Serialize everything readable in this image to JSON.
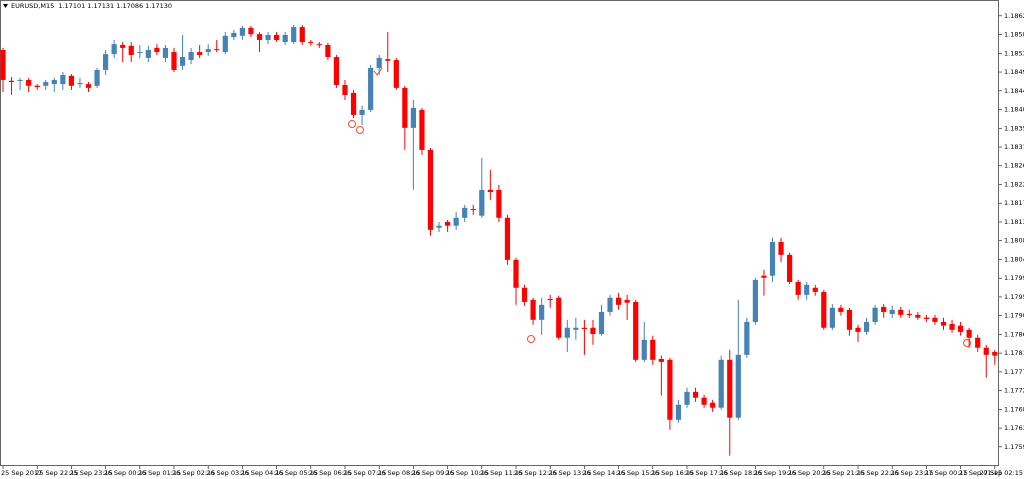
{
  "chart_data": {
    "type": "candlestick",
    "title": "EURUSD,M15  1.17101 1.17131 1.17086 1.17130",
    "up_color": "#4682b4",
    "down_color": "#ff0000",
    "categories": [
      "25 Sep 2017",
      null,
      null,
      null,
      "25 Sep 22:15",
      null,
      null,
      null,
      "25 Sep 23:15",
      null,
      null,
      null,
      "26 Sep 00:15",
      null,
      null,
      null,
      "26 Sep 01:15",
      null,
      null,
      null,
      "26 Sep 02:15",
      null,
      null,
      null,
      "26 Sep 03:15",
      null,
      null,
      null,
      "26 Sep 04:15",
      null,
      null,
      null,
      "26 Sep 05:15",
      null,
      null,
      null,
      "26 Sep 06:15",
      null,
      null,
      null,
      "26 Sep 07:15",
      null,
      null,
      null,
      "26 Sep 08:15",
      null,
      null,
      null,
      "26 Sep 09:15",
      null,
      null,
      null,
      "26 Sep 10:15",
      null,
      null,
      null,
      "26 Sep 11:15",
      null,
      null,
      null,
      "26 Sep 12:15",
      null,
      null,
      null,
      "26 Sep 13:15",
      null,
      null,
      null,
      "26 Sep 14:15",
      null,
      null,
      null,
      "26 Sep 15:15",
      null,
      null,
      null,
      "26 Sep 16:15",
      null,
      null,
      null,
      "26 Sep 17:15",
      null,
      null,
      null,
      "26 Sep 18:15",
      null,
      null,
      null,
      "26 Sep 19:15",
      null,
      null,
      null,
      "26 Sep 20:15",
      null,
      null,
      null,
      "26 Sep 21:15",
      null,
      null,
      null,
      "26 Sep 22:15",
      null,
      null,
      null,
      "26 Sep 23:15",
      null,
      null,
      null,
      "27 Sep 00:15",
      null,
      null,
      null,
      "27 Sep 01:15",
      null,
      null,
      null,
      "27 Sep 02:15"
    ],
    "open": [
      1.18543,
      1.18469,
      1.18469,
      1.18471,
      1.18457,
      1.18457,
      1.18461,
      1.18461,
      1.18481,
      1.18461,
      1.18461,
      1.18457,
      1.18495,
      1.18533,
      1.18555,
      1.18553,
      1.18536,
      1.18524,
      1.18548,
      1.18524,
      1.18538,
      1.18505,
      1.18519,
      1.18538,
      1.18538,
      1.18545,
      1.18538,
      1.18574,
      1.18577,
      1.18596,
      1.18581,
      1.18567,
      1.18579,
      1.18562,
      1.18562,
      1.18598,
      1.18562,
      1.18557,
      1.18555,
      1.18526,
      1.18459,
      1.1844,
      1.18387,
      1.18399,
      1.185,
      1.18521,
      1.18519,
      1.18452,
      1.18356,
      1.18399,
      1.18303,
      1.18116,
      1.1813,
      1.18121,
      1.1814,
      1.18161,
      1.18145,
      1.18207,
      1.18207,
      1.1814,
      1.18039,
      1.17972,
      1.17943,
      1.17895,
      1.17945,
      1.17948,
      1.17852,
      1.17871,
      1.17876,
      1.17876,
      1.17861,
      1.17914,
      1.17948,
      1.17943,
      1.17938,
      1.17799,
      1.17847,
      1.17801,
      1.17799,
      1.17655,
      1.17691,
      1.17722,
      1.17708,
      1.17696,
      1.17684,
      1.17799,
      1.1766,
      1.17811,
      1.1789,
      1.18001,
      1.18001,
      1.18082,
      1.18051,
      1.17986,
      1.17955,
      1.17972,
      1.17962,
      1.17876,
      1.17924,
      1.17919,
      1.17876,
      1.17866,
      1.1789,
      1.17926,
      1.17909,
      1.17919,
      1.17909,
      1.17907,
      1.179,
      1.179,
      1.1789,
      1.17885,
      1.17881,
      1.17871,
      1.17852,
      1.17828,
      1.17818
    ],
    "high": [
      1.18548,
      1.18478,
      1.18476,
      1.18476,
      1.18461,
      1.18471,
      1.18476,
      1.1849,
      1.18485,
      1.18476,
      1.18466,
      1.185,
      1.18543,
      1.18567,
      1.18562,
      1.18562,
      1.18555,
      1.18553,
      1.18557,
      1.18555,
      1.18548,
      1.18579,
      1.18548,
      1.18555,
      1.18557,
      1.18567,
      1.18586,
      1.18591,
      1.18601,
      1.18601,
      1.18586,
      1.18586,
      1.18586,
      1.18586,
      1.18603,
      1.18603,
      1.18567,
      1.18562,
      1.1856,
      1.18531,
      1.18471,
      1.18447,
      1.18409,
      1.18507,
      1.18531,
      1.18586,
      1.18524,
      1.18457,
      1.18423,
      1.18404,
      1.18308,
      1.1813,
      1.18135,
      1.18154,
      1.18171,
      1.18171,
      1.18284,
      1.18255,
      1.18219,
      1.18147,
      1.18044,
      1.17979,
      1.17948,
      1.17948,
      1.17955,
      1.17953,
      1.17895,
      1.179,
      1.17895,
      1.17895,
      1.17931,
      1.17955,
      1.1796,
      1.17955,
      1.17943,
      1.1789,
      1.17857,
      1.17809,
      1.17804,
      1.17703,
      1.17732,
      1.17732,
      1.17715,
      1.17703,
      1.17809,
      1.17823,
      1.17943,
      1.179,
      1.17996,
      1.18015,
      1.18092,
      1.18092,
      1.18056,
      1.17991,
      1.17986,
      1.17979,
      1.17967,
      1.17933,
      1.17931,
      1.17924,
      1.17883,
      1.179,
      1.17931,
      1.17933,
      1.17929,
      1.17926,
      1.17919,
      1.17914,
      1.17907,
      1.17907,
      1.179,
      1.17895,
      1.1789,
      1.17876,
      1.17859,
      1.17835,
      1.17823
    ],
    "low": [
      1.18442,
      1.18435,
      1.18447,
      1.18442,
      1.18447,
      1.18447,
      1.18442,
      1.18447,
      1.18447,
      1.18452,
      1.18442,
      1.18452,
      1.18483,
      1.18524,
      1.18514,
      1.18514,
      1.18524,
      1.18514,
      1.18531,
      1.18514,
      1.1849,
      1.18495,
      1.18509,
      1.18524,
      1.18529,
      1.18538,
      1.18533,
      1.18567,
      1.18567,
      1.18574,
      1.18538,
      1.18557,
      1.18562,
      1.18555,
      1.18557,
      1.18555,
      1.18553,
      1.18548,
      1.18519,
      1.18452,
      1.18423,
      1.1838,
      1.18363,
      1.18394,
      1.18483,
      1.1849,
      1.18447,
      1.18303,
      1.18207,
      1.18291,
      1.18097,
      1.18106,
      1.18106,
      1.18111,
      1.1813,
      1.18147,
      1.1814,
      1.18183,
      1.1813,
      1.18027,
      1.17931,
      1.17929,
      1.17883,
      1.17859,
      1.17924,
      1.17847,
      1.17818,
      1.17847,
      1.17811,
      1.17835,
      1.17857,
      1.17905,
      1.17919,
      1.17895,
      1.17794,
      1.17794,
      1.17787,
      1.17713,
      1.17631,
      1.17648,
      1.17684,
      1.17698,
      1.17684,
      1.17674,
      1.17679,
      1.17569,
      1.17655,
      1.17804,
      1.17883,
      1.17953,
      1.17986,
      1.18034,
      1.17981,
      1.17943,
      1.17943,
      1.17953,
      1.17871,
      1.17871,
      1.17905,
      1.17857,
      1.17842,
      1.17859,
      1.17883,
      1.179,
      1.179,
      1.179,
      1.179,
      1.17895,
      1.1789,
      1.17883,
      1.17871,
      1.17864,
      1.17857,
      1.17828,
      1.17818,
      1.17756,
      1.17787
    ],
    "close": [
      1.18471,
      1.18466,
      1.18471,
      1.18457,
      1.18454,
      1.18466,
      1.18471,
      1.18483,
      1.18457,
      1.18464,
      1.18452,
      1.18495,
      1.18533,
      1.18557,
      1.18548,
      1.18531,
      1.18538,
      1.18543,
      1.18538,
      1.18548,
      1.18495,
      1.18526,
      1.18538,
      1.18531,
      1.18545,
      1.18543,
      1.18577,
      1.18584,
      1.18596,
      1.18581,
      1.18567,
      1.18579,
      1.18567,
      1.18579,
      1.18598,
      1.18562,
      1.1856,
      1.18555,
      1.18526,
      1.18459,
      1.18435,
      1.18387,
      1.18399,
      1.185,
      1.18524,
      1.18517,
      1.18452,
      1.18356,
      1.18404,
      1.18303,
      1.18111,
      1.18121,
      1.18121,
      1.1814,
      1.18164,
      1.18159,
      1.18207,
      1.18202,
      1.1814,
      1.18039,
      1.17972,
      1.17938,
      1.17895,
      1.17931,
      1.17943,
      1.17852,
      1.17876,
      1.17876,
      1.17873,
      1.17861,
      1.17914,
      1.17948,
      1.17931,
      1.17936,
      1.17799,
      1.17847,
      1.17799,
      1.17794,
      1.17655,
      1.17691,
      1.17722,
      1.17708,
      1.17691,
      1.17684,
      1.17799,
      1.1766,
      1.17811,
      1.1789,
      1.17991,
      1.17996,
      1.18082,
      1.18051,
      1.17986,
      1.17955,
      1.17979,
      1.17962,
      1.17876,
      1.17924,
      1.17914,
      1.17871,
      1.17866,
      1.1789,
      1.17924,
      1.17914,
      1.17919,
      1.17907,
      1.17907,
      1.179,
      1.17897,
      1.1789,
      1.17881,
      1.17871,
      1.17866,
      1.17852,
      1.17828,
      1.17811,
      1.17809
    ],
    "ylim": [
      1.17544,
      1.18663
    ],
    "yticks": [
      1.18625,
      {
        "value": 1.1858,
        "label": "1.18580"
      },
      1.18535,
      {
        "value": 1.1849,
        "label": "1.18490"
      },
      1.18445,
      {
        "value": 1.184,
        "label": "1.18400"
      },
      1.18355,
      {
        "value": 1.1831,
        "label": "1.18310"
      },
      1.18265,
      {
        "value": 1.1822,
        "label": "1.18220"
      },
      1.18175,
      {
        "value": 1.1813,
        "label": "1.18130"
      },
      1.18085,
      {
        "value": 1.1804,
        "label": "1.18040"
      },
      1.17995,
      {
        "value": 1.1795,
        "label": "1.17950"
      },
      1.17905,
      {
        "value": 1.1786,
        "label": "1.17860"
      },
      1.17815,
      {
        "value": 1.1777,
        "label": "1.17770"
      },
      1.17725,
      {
        "value": 1.1768,
        "label": "1.17680"
      },
      1.17635,
      {
        "value": 1.1759,
        "label": "1.17590"
      }
    ]
  }
}
